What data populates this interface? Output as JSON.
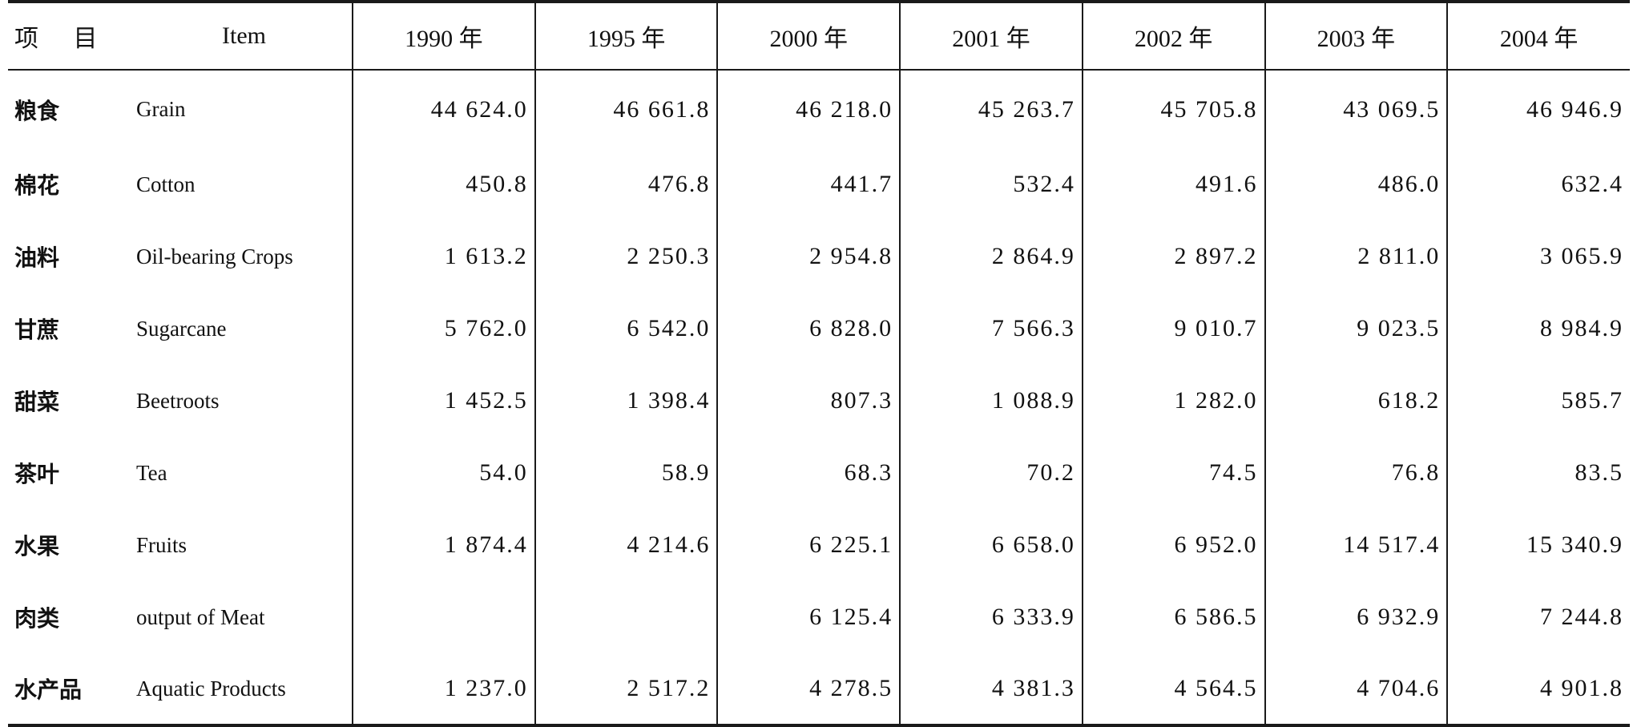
{
  "table": {
    "header": {
      "item_cn": "项 目",
      "item_en": "Item",
      "years": [
        "1990 年",
        "1995 年",
        "2000 年",
        "2001 年",
        "2002 年",
        "2003 年",
        "2004 年"
      ]
    },
    "rows": [
      {
        "cn": "粮食",
        "en": "Grain",
        "values": [
          "44 624.0",
          "46 661.8",
          "46 218.0",
          "45 263.7",
          "45 705.8",
          "43 069.5",
          "46 946.9"
        ]
      },
      {
        "cn": "棉花",
        "en": "Cotton",
        "values": [
          "450.8",
          "476.8",
          "441.7",
          "532.4",
          "491.6",
          "486.0",
          "632.4"
        ]
      },
      {
        "cn": "油料",
        "en": "Oil-bearing Crops",
        "values": [
          "1 613.2",
          "2 250.3",
          "2 954.8",
          "2 864.9",
          "2 897.2",
          "2 811.0",
          "3 065.9"
        ]
      },
      {
        "cn": "甘蔗",
        "en": "Sugarcane",
        "values": [
          "5 762.0",
          "6 542.0",
          "6 828.0",
          "7 566.3",
          "9 010.7",
          "9 023.5",
          "8 984.9"
        ]
      },
      {
        "cn": "甜菜",
        "en": "Beetroots",
        "values": [
          "1 452.5",
          "1 398.4",
          "807.3",
          "1 088.9",
          "1 282.0",
          "618.2",
          "585.7"
        ]
      },
      {
        "cn": "茶叶",
        "en": "Tea",
        "values": [
          "54.0",
          "58.9",
          "68.3",
          "70.2",
          "74.5",
          "76.8",
          "83.5"
        ]
      },
      {
        "cn": "水果",
        "en": "Fruits",
        "values": [
          "1 874.4",
          "4 214.6",
          "6 225.1",
          "6 658.0",
          "6 952.0",
          "14 517.4",
          "15 340.9"
        ]
      },
      {
        "cn": "肉类",
        "en": "output of Meat",
        "values": [
          "",
          "",
          "6 125.4",
          "6 333.9",
          "6 586.5",
          "6 932.9",
          "7 244.8"
        ]
      },
      {
        "cn": "水产品",
        "en": "Aquatic Products",
        "values": [
          "1 237.0",
          "2 517.2",
          "4 278.5",
          "4 381.3",
          "4 564.5",
          "4 704.6",
          "4 901.8"
        ]
      }
    ]
  }
}
